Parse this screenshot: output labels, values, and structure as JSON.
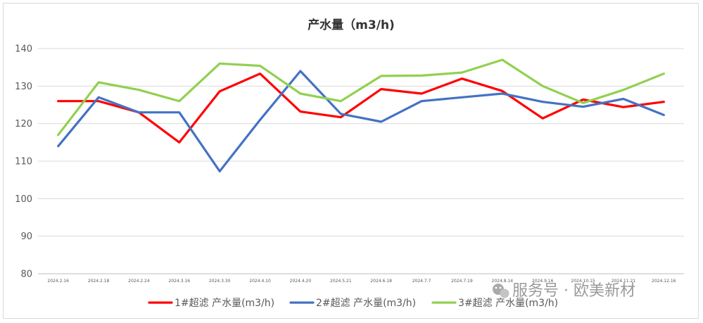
{
  "chart_data": {
    "type": "line",
    "title": "产水量（m3/h)",
    "xlabel": "",
    "ylabel": "",
    "ylim": [
      80,
      140
    ],
    "yticks": [
      80,
      90,
      100,
      110,
      120,
      130,
      140
    ],
    "grid": true,
    "legend": "bottom",
    "categories": [
      "2024.2.16",
      "2024.2.18",
      "2024.2.24",
      "2024.3.16",
      "2024.3.30",
      "2024.4.10",
      "2024.4.20",
      "2024.5.21",
      "2024.6.18",
      "2024.7.7",
      "2024.7.19",
      "2024.8.14",
      "2024.9.16",
      "2024.10.15",
      "2024.11.21",
      "2024.12.16"
    ],
    "series": [
      {
        "name": "1#超滤 产水量(m3/h)",
        "color": "#ff0000",
        "values": [
          126,
          126,
          123,
          115,
          128.6,
          133.3,
          123.2,
          121.7,
          129.2,
          128,
          132,
          128.7,
          121.4,
          126.4,
          124.4,
          125.8
        ]
      },
      {
        "name": "2#超滤 产水量(m3/h)",
        "color": "#4472c4",
        "values": [
          114,
          127,
          123,
          123,
          107.3,
          121,
          134,
          122.6,
          120.5,
          126,
          127,
          128,
          125.8,
          124.5,
          126.6,
          122.3
        ]
      },
      {
        "name": "3#超滤 产水量(m3/h)",
        "color": "#92d050",
        "values": [
          117,
          131,
          129,
          126,
          136,
          135.4,
          128,
          126,
          132.7,
          132.8,
          133.6,
          137,
          130,
          125.5,
          129,
          133.3
        ]
      }
    ]
  },
  "watermark": {
    "text": "服务号 · 欧美新材",
    "icon": "wechat-icon"
  }
}
